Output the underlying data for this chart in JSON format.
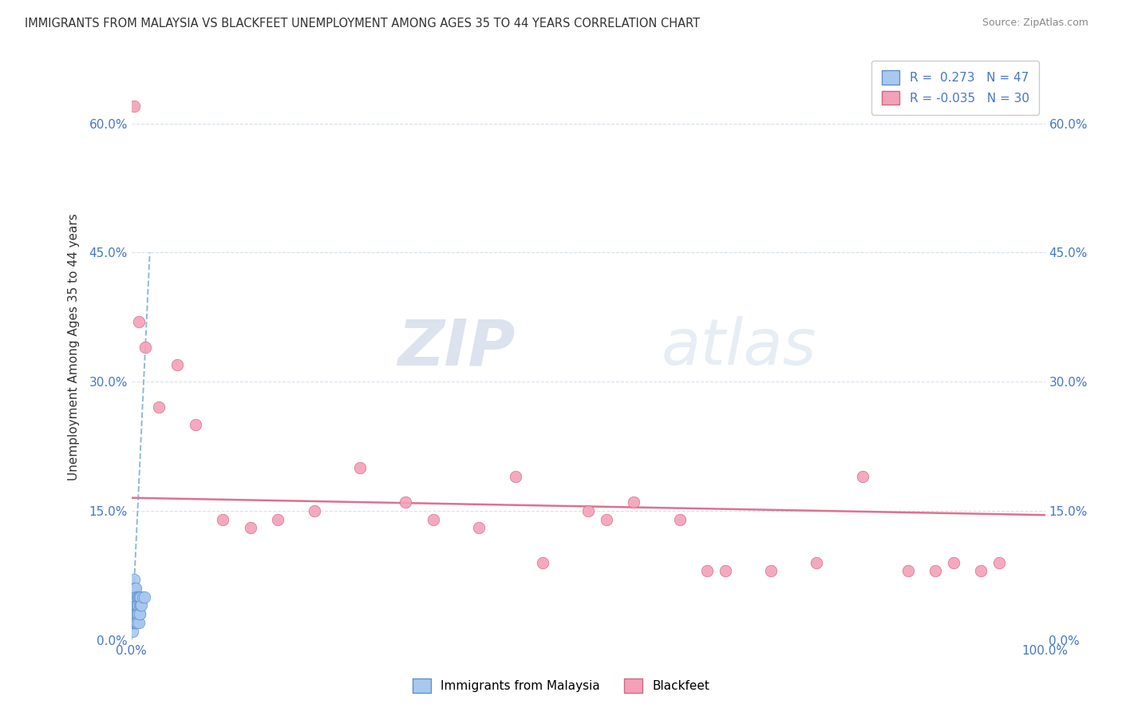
{
  "title": "IMMIGRANTS FROM MALAYSIA VS BLACKFEET UNEMPLOYMENT AMONG AGES 35 TO 44 YEARS CORRELATION CHART",
  "source": "Source: ZipAtlas.com",
  "ylabel": "Unemployment Among Ages 35 to 44 years",
  "yticks": [
    "0.0%",
    "15.0%",
    "30.0%",
    "45.0%",
    "60.0%"
  ],
  "ytick_vals": [
    0,
    15,
    30,
    45,
    60
  ],
  "xlim": [
    0,
    100
  ],
  "ylim": [
    0,
    68
  ],
  "legend_label1": "Immigrants from Malaysia",
  "legend_label2": "Blackfeet",
  "r1": 0.273,
  "n1": 47,
  "r2": -0.035,
  "n2": 30,
  "color_blue": "#a8c8f0",
  "color_pink": "#f4a0b8",
  "color_blue_dark": "#6090c8",
  "color_pink_dark": "#d06880",
  "watermark_zip": "ZIP",
  "watermark_atlas": "atlas",
  "watermark_color": "#c8d4e8",
  "blue_scatter_x": [
    0.05,
    0.08,
    0.1,
    0.12,
    0.13,
    0.15,
    0.17,
    0.18,
    0.2,
    0.22,
    0.25,
    0.27,
    0.28,
    0.3,
    0.32,
    0.33,
    0.35,
    0.37,
    0.38,
    0.4,
    0.42,
    0.43,
    0.45,
    0.47,
    0.48,
    0.5,
    0.52,
    0.55,
    0.57,
    0.6,
    0.62,
    0.65,
    0.67,
    0.7,
    0.72,
    0.75,
    0.78,
    0.8,
    0.85,
    0.88,
    0.9,
    0.93,
    0.95,
    1.0,
    1.1,
    1.2,
    1.4
  ],
  "blue_scatter_y": [
    3,
    2,
    4,
    1,
    3,
    5,
    2,
    4,
    6,
    3,
    5,
    2,
    4,
    7,
    3,
    5,
    2,
    4,
    6,
    3,
    5,
    2,
    4,
    6,
    3,
    5,
    3,
    4,
    2,
    5,
    3,
    4,
    2,
    5,
    3,
    4,
    2,
    5,
    3,
    4,
    5,
    3,
    4,
    5,
    4,
    5,
    5
  ],
  "pink_scatter_x": [
    0.3,
    0.8,
    1.5,
    3.0,
    5.0,
    7.0,
    10.0,
    13.0,
    16.0,
    20.0,
    25.0,
    30.0,
    33.0,
    38.0,
    42.0,
    45.0,
    50.0,
    52.0,
    55.0,
    60.0,
    63.0,
    65.0,
    70.0,
    75.0,
    80.0,
    85.0,
    88.0,
    90.0,
    93.0,
    95.0
  ],
  "pink_scatter_y": [
    62,
    37,
    34,
    27,
    32,
    25,
    14,
    13,
    14,
    15,
    20,
    16,
    14,
    13,
    19,
    9,
    15,
    14,
    16,
    14,
    8,
    8,
    8,
    9,
    19,
    8,
    8,
    9,
    8,
    9
  ],
  "trendline1_x": [
    0,
    2.0
  ],
  "trendline1_y": [
    0,
    45
  ],
  "trendline2_x": [
    0,
    100
  ],
  "trendline2_y": [
    16.5,
    14.5
  ]
}
